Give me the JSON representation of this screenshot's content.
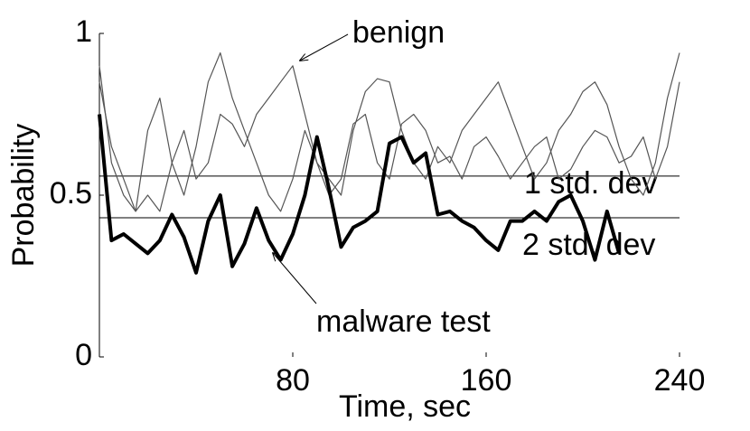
{
  "chart_data": {
    "type": "line",
    "x_label": "Time, sec",
    "y_label": "Probability",
    "x": [
      0,
      5,
      10,
      15,
      20,
      25,
      30,
      35,
      40,
      45,
      50,
      55,
      60,
      65,
      70,
      75,
      80,
      85,
      90,
      95,
      100,
      105,
      110,
      115,
      120,
      125,
      130,
      135,
      140,
      145,
      150,
      155,
      160,
      165,
      170,
      175,
      180,
      185,
      190,
      195,
      200,
      205,
      210,
      215,
      220,
      225,
      230,
      235,
      240
    ],
    "series": [
      {
        "color": "#555555",
        "width": 1.2,
        "values": [
          0.9,
          0.6,
          0.5,
          0.45,
          0.7,
          0.8,
          0.6,
          0.5,
          0.65,
          0.85,
          0.94,
          0.8,
          0.7,
          0.6,
          0.5,
          0.45,
          0.55,
          0.7,
          0.6,
          0.55,
          0.5,
          0.7,
          0.82,
          0.86,
          0.85,
          0.7,
          0.6,
          0.55,
          0.65,
          0.6,
          0.7,
          0.75,
          0.8,
          0.85,
          0.75,
          0.65,
          0.55,
          0.6,
          0.7,
          0.75,
          0.82,
          0.85,
          0.78,
          0.65,
          0.55,
          0.5,
          0.6,
          0.8,
          0.94
        ]
      },
      {
        "color": "#555555",
        "width": 1.2,
        "values": [
          0.85,
          0.65,
          0.55,
          0.45,
          0.5,
          0.45,
          0.6,
          0.7,
          0.55,
          0.6,
          0.75,
          0.72,
          0.65,
          0.75,
          0.8,
          0.85,
          0.9,
          0.75,
          0.6,
          0.5,
          0.55,
          0.72,
          0.75,
          0.6,
          0.55,
          0.72,
          0.75,
          0.7,
          0.6,
          0.62,
          0.55,
          0.65,
          0.68,
          0.62,
          0.55,
          0.6,
          0.65,
          0.68,
          0.55,
          0.58,
          0.65,
          0.7,
          0.68,
          0.6,
          0.62,
          0.68,
          0.55,
          0.65,
          0.85
        ]
      },
      {
        "color": "#000000",
        "width": 4,
        "values": [
          0.75,
          0.36,
          0.38,
          0.35,
          0.32,
          0.36,
          0.44,
          0.37,
          0.26,
          0.42,
          0.5,
          0.28,
          0.35,
          0.46,
          0.36,
          0.3,
          0.38,
          0.5,
          0.68,
          0.52,
          0.34,
          0.4,
          0.42,
          0.45,
          0.66,
          0.68,
          0.6,
          0.63,
          0.44,
          0.45,
          0.42,
          0.4,
          0.36,
          0.33,
          0.42,
          0.42,
          0.45,
          0.42,
          0.48,
          0.5,
          0.42,
          0.3,
          0.45,
          0.32,
          null,
          null,
          null,
          null,
          null
        ]
      }
    ],
    "reference_lines": [
      {
        "value": 0.559,
        "label": "1 std. dev",
        "color": "#000000"
      },
      {
        "value": 0.43,
        "label": "2 std. dev",
        "color": "#000000"
      }
    ],
    "annotations": [
      "benign",
      "malware test"
    ],
    "xlim": [
      0,
      240
    ],
    "xticks": [
      80,
      160,
      240
    ],
    "ylim": [
      0,
      1
    ],
    "yticks": [
      0,
      0.5,
      1
    ],
    "grid": false
  }
}
